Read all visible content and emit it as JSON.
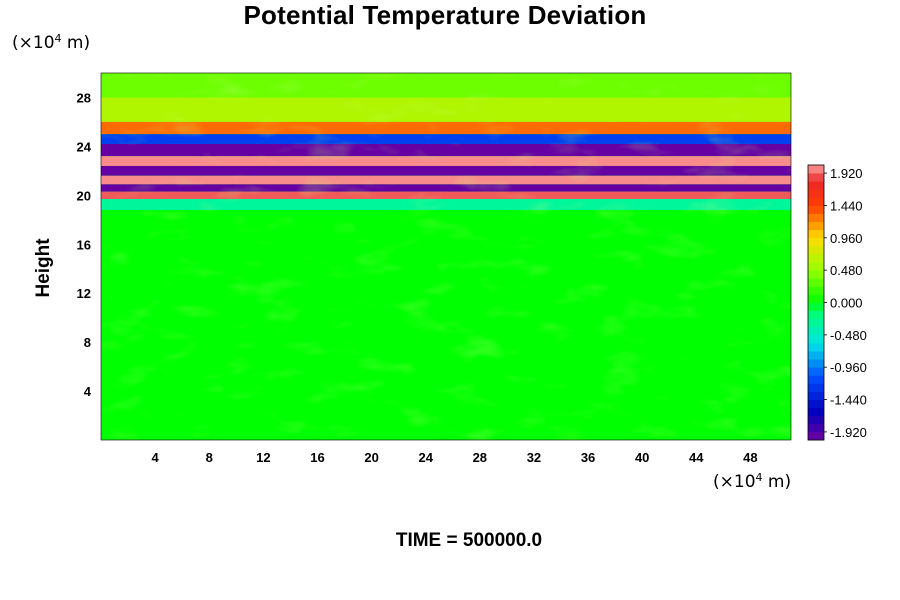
{
  "chart_data": {
    "type": "heatmap",
    "title": "Potential Temperature Deviation",
    "ylabel": "Height",
    "xlabel": "",
    "y_unit": {
      "prefix": "(×10",
      "exp": "4",
      "suffix": " m)"
    },
    "x_unit": {
      "prefix": "(×10",
      "exp": "4",
      "suffix": " m)"
    },
    "xlim": [
      0,
      51
    ],
    "ylim": [
      0,
      30
    ],
    "xticks": [
      4,
      8,
      12,
      16,
      20,
      24,
      28,
      32,
      36,
      40,
      44,
      48
    ],
    "yticks": [
      4,
      8,
      12,
      16,
      20,
      24,
      28
    ],
    "colorbar": {
      "min": -2.04,
      "max": 2.04,
      "step": 0.12,
      "tick_labels": [
        "1.920",
        "1.440",
        "0.960",
        "0.480",
        "0.000",
        "-0.480",
        "-0.960",
        "-1.440",
        "-1.920"
      ],
      "tick_values": [
        1.92,
        1.44,
        0.96,
        0.48,
        0.0,
        -0.48,
        -0.96,
        -1.44,
        -1.92
      ]
    },
    "bands": [
      {
        "y_from": 28.0,
        "y_to": 30.0,
        "value": 0.35
      },
      {
        "y_from": 26.0,
        "y_to": 28.0,
        "value": 0.6
      },
      {
        "y_from": 25.0,
        "y_to": 26.0,
        "value": 1.3
      },
      {
        "y_from": 24.2,
        "y_to": 25.0,
        "value": -1.2
      },
      {
        "y_from": 23.2,
        "y_to": 24.2,
        "value": -2.0
      },
      {
        "y_from": 22.4,
        "y_to": 23.2,
        "value": 2.0
      },
      {
        "y_from": 21.6,
        "y_to": 22.4,
        "value": -2.0
      },
      {
        "y_from": 20.9,
        "y_to": 21.6,
        "value": 2.0
      },
      {
        "y_from": 20.3,
        "y_to": 20.9,
        "value": -2.0
      },
      {
        "y_from": 19.7,
        "y_to": 20.3,
        "value": 1.9
      },
      {
        "y_from": 18.8,
        "y_to": 19.7,
        "value": -0.3
      },
      {
        "y_from": 0.0,
        "y_to": 18.8,
        "value": 0.0
      }
    ],
    "colors": {
      "background": "#00ff00",
      "frame": "#000000"
    }
  },
  "footer": {
    "time_label": "TIME = 500000.0"
  }
}
